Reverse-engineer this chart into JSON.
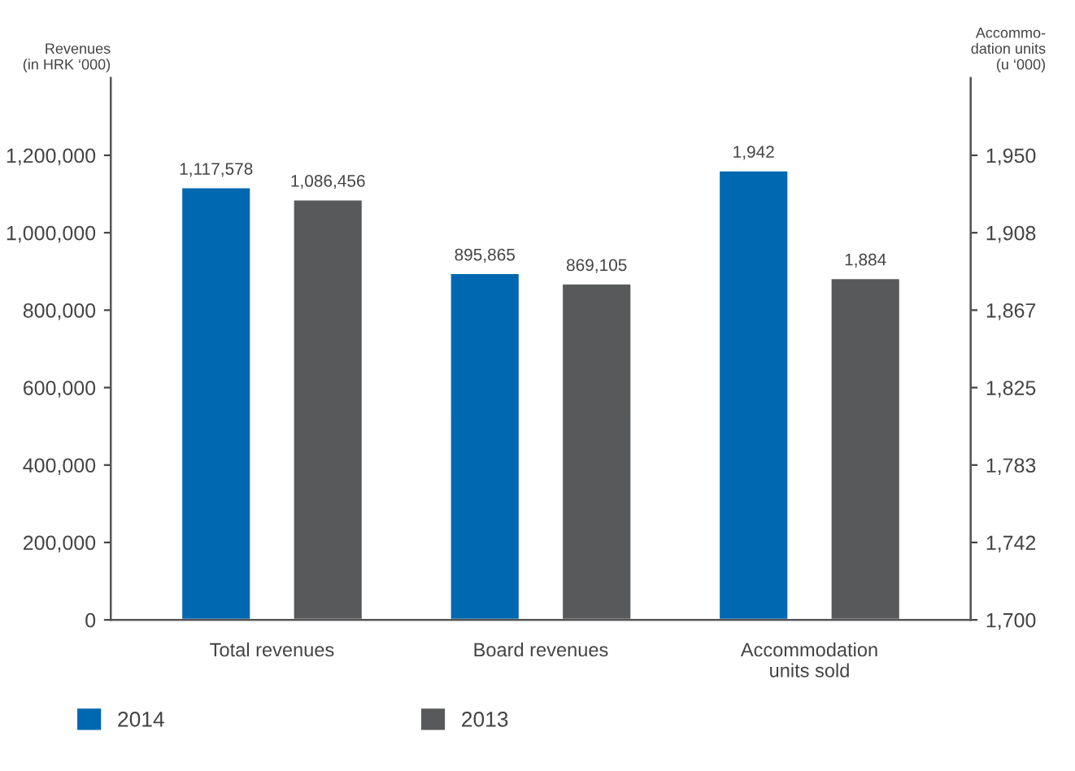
{
  "chart_data": {
    "type": "bar",
    "categories": [
      "Total revenues",
      "Board revenues",
      "Accommodation\nunits sold"
    ],
    "series": [
      {
        "name": "2014",
        "color": "#0068b0",
        "values": [
          1117578,
          895865,
          null
        ],
        "value_labels": [
          "1,117,578",
          "895,865",
          null
        ]
      },
      {
        "name": "2013",
        "color": "#58595b",
        "values": [
          1086456,
          869105,
          null
        ],
        "value_labels": [
          "1,086,456",
          "869,105",
          null
        ]
      },
      {
        "color": "#0068b0",
        "axis": "y2",
        "values": [
          null,
          null,
          1942
        ],
        "value_labels": [
          null,
          null,
          "1,942"
        ]
      },
      {
        "color": "#58595b",
        "axis": "y2",
        "values": [
          null,
          null,
          1884
        ],
        "value_labels": [
          null,
          null,
          "1,884"
        ]
      }
    ],
    "ylabel": "Revenues\n(in HRK ‘000)",
    "y2label": "Accommo-\ndation units\n(u ‘000)",
    "ylim": [
      0,
      1400000
    ],
    "yticks": [
      {
        "value": 0,
        "label": "0"
      },
      {
        "value": 200000,
        "label": "200,000"
      },
      {
        "value": 400000,
        "label": "400,000"
      },
      {
        "value": 600000,
        "label": "600,000"
      },
      {
        "value": 800000,
        "label": "800,000"
      },
      {
        "value": 1000000,
        "label": "1,000,000"
      },
      {
        "value": 1200000,
        "label": "1,200,000"
      }
    ],
    "y2lim": [
      1700,
      1991.67
    ],
    "y2ticks": [
      {
        "value": 1700,
        "label": "1,700"
      },
      {
        "value": 1741.67,
        "label": "1,742"
      },
      {
        "value": 1783.33,
        "label": "1,783"
      },
      {
        "value": 1825,
        "label": "1,825"
      },
      {
        "value": 1866.67,
        "label": "1,867"
      },
      {
        "value": 1908.33,
        "label": "1,908"
      },
      {
        "value": 1950,
        "label": "1,950"
      }
    ],
    "legend": "bottom left",
    "grid": false
  }
}
